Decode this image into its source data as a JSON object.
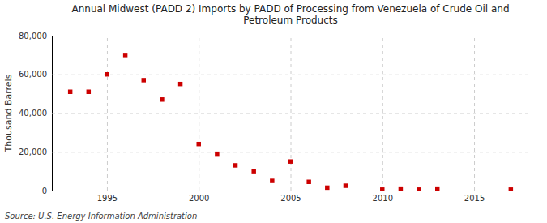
{
  "chart_data": {
    "type": "scatter",
    "title": "Annual Midwest (PADD 2) Imports by PADD of Processing from Venezuela of Crude Oil and\nPetroleum Products",
    "y_label": "Thousand Barrels",
    "annotation": "Source: U.S. Energy Information Administration",
    "x": [
      1993,
      1994,
      1995,
      1996,
      1997,
      1998,
      1999,
      2000,
      2001,
      2002,
      2003,
      2004,
      2005,
      2006,
      2007,
      2008,
      2010,
      2011,
      2012,
      2013,
      2017
    ],
    "values": [
      51000,
      51000,
      60000,
      70000,
      57000,
      47000,
      55000,
      24000,
      19000,
      13000,
      10000,
      5000,
      15000,
      4500,
      1500,
      2500,
      500,
      1000,
      500,
      1000,
      500
    ],
    "color": "#cc0000",
    "marker": "square",
    "xlim": [
      1992,
      2018
    ],
    "ylim": [
      0,
      80000
    ],
    "xticks": [
      1995,
      2000,
      2005,
      2010,
      2015
    ],
    "yticks": [
      0,
      {
        "value": 20000,
        "label": "20,000"
      },
      {
        "value": 40000,
        "label": "40,000"
      },
      {
        "value": 60000,
        "label": "60,000"
      },
      {
        "value": 80000,
        "label": "80,000"
      }
    ],
    "grid": true
  }
}
